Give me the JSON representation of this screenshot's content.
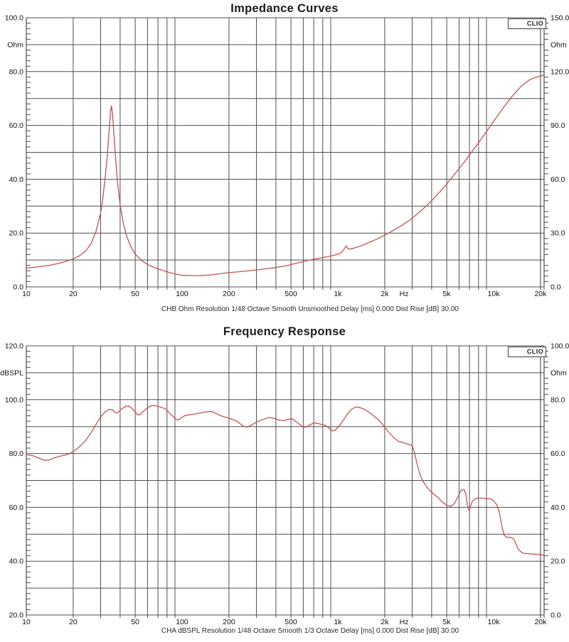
{
  "badge": "CLIO",
  "colors": {
    "grid": "#4f4f4f",
    "text": "#111111",
    "curve_red": "#bf5450",
    "background": "#ffffff"
  },
  "chart_data": [
    {
      "type": "line",
      "title": "Impedance Curves",
      "caption": "CHB Ohm Resolution 1/48 Octave Smooth Unsmoothed Delay [ms] 0.000 Dist Rise [dB] 30.00",
      "x_axis": {
        "scale": "log",
        "unit": "Hz",
        "min_hz": 10,
        "max_hz": 21000,
        "grid": "log-decades"
      },
      "x_ticks": [
        {
          "f": 10,
          "t": "10"
        },
        {
          "f": 20,
          "t": "20"
        },
        {
          "f": 50,
          "t": "50"
        },
        {
          "f": 100,
          "t": "100"
        },
        {
          "f": 200,
          "t": "200"
        },
        {
          "f": 500,
          "t": "500"
        },
        {
          "f": 1000,
          "t": "1k"
        },
        {
          "f": 2000,
          "t": "2k"
        },
        {
          "f": 2660,
          "t": "Hz"
        },
        {
          "f": 5000,
          "t": "5k"
        },
        {
          "f": 10000,
          "t": "10k"
        },
        {
          "f": 20000,
          "t": "20k"
        }
      ],
      "y_left": {
        "unit": "Ohm",
        "min": 0,
        "max": 100,
        "grid_step": 10,
        "labels": [
          {
            "v": 100,
            "t": "100.0"
          },
          {
            "v": 90,
            "t": "Ohm"
          },
          {
            "v": 80,
            "t": "80.0"
          },
          {
            "v": 60,
            "t": "60.0"
          },
          {
            "v": 40,
            "t": "40.0"
          },
          {
            "v": 20,
            "t": "20.0"
          },
          {
            "v": 0,
            "t": "0.0"
          }
        ]
      },
      "y_right": {
        "unit": "Ohm",
        "min": 0,
        "max": 150,
        "labels": [
          {
            "v": 150,
            "t": "150.0"
          },
          {
            "v": 135,
            "t": "Ohm"
          },
          {
            "v": 120,
            "t": "120.0"
          },
          {
            "v": 90,
            "t": "90.0"
          },
          {
            "v": 60,
            "t": "60.0"
          },
          {
            "v": 30,
            "t": "30.0"
          },
          {
            "v": 0,
            "t": "0.0"
          }
        ]
      },
      "series": [
        {
          "name": "CHB Ohm",
          "color": "#bf5450",
          "axis": "left",
          "points": [
            [
              10,
              7.0
            ],
            [
              12,
              7.5
            ],
            [
              14,
              8.0
            ],
            [
              16,
              8.7
            ],
            [
              18,
              9.5
            ],
            [
              20,
              10.4
            ],
            [
              22,
              11.6
            ],
            [
              24,
              13.3
            ],
            [
              26,
              16.0
            ],
            [
              28,
              20.5
            ],
            [
              30,
              27.5
            ],
            [
              31,
              33.0
            ],
            [
              32,
              40.0
            ],
            [
              33,
              48.0
            ],
            [
              34,
              58.0
            ],
            [
              34.8,
              65.5
            ],
            [
              35.2,
              67.3
            ],
            [
              35.8,
              64.0
            ],
            [
              36.5,
              57.0
            ],
            [
              37.5,
              47.0
            ],
            [
              38.5,
              39.0
            ],
            [
              40,
              30.5
            ],
            [
              42,
              23.5
            ],
            [
              44,
              19.0
            ],
            [
              47,
              14.8
            ],
            [
              50,
              12.2
            ],
            [
              55,
              9.8
            ],
            [
              60,
              8.4
            ],
            [
              65,
              7.4
            ],
            [
              70,
              6.7
            ],
            [
              80,
              5.6
            ],
            [
              90,
              4.8
            ],
            [
              100,
              4.3
            ],
            [
              115,
              4.2
            ],
            [
              130,
              4.2
            ],
            [
              150,
              4.4
            ],
            [
              175,
              4.9
            ],
            [
              200,
              5.3
            ],
            [
              240,
              5.7
            ],
            [
              280,
              6.1
            ],
            [
              330,
              6.6
            ],
            [
              400,
              7.2
            ],
            [
              470,
              7.9
            ],
            [
              550,
              8.9
            ],
            [
              650,
              9.9
            ],
            [
              750,
              10.6
            ],
            [
              850,
              11.2
            ],
            [
              950,
              11.8
            ],
            [
              1030,
              12.4
            ],
            [
              1090,
              13.8
            ],
            [
              1130,
              15.2
            ],
            [
              1170,
              14.0
            ],
            [
              1250,
              14.3
            ],
            [
              1400,
              15.2
            ],
            [
              1600,
              16.6
            ],
            [
              1800,
              17.9
            ],
            [
              2000,
              19.2
            ],
            [
              2300,
              21.2
            ],
            [
              2600,
              23.0
            ],
            [
              3000,
              25.5
            ],
            [
              3500,
              28.8
            ],
            [
              4000,
              32.0
            ],
            [
              4500,
              35.2
            ],
            [
              5000,
              38.2
            ],
            [
              5600,
              41.8
            ],
            [
              6300,
              45.5
            ],
            [
              7100,
              49.5
            ],
            [
              8000,
              53.5
            ],
            [
              9000,
              57.7
            ],
            [
              10000,
              61.5
            ],
            [
              11500,
              66.5
            ],
            [
              13000,
              70.5
            ],
            [
              15000,
              74.5
            ],
            [
              17000,
              77.0
            ],
            [
              19000,
              78.0
            ],
            [
              20000,
              78.3
            ],
            [
              21000,
              78.7
            ]
          ]
        }
      ]
    },
    {
      "type": "line",
      "title": "Frequency Response",
      "caption": "CHA dBSPL Resolution 1/48 Octave Smooth 1/3 Octave Delay [ms] 0.000 Dist Rise [dB] 30.00",
      "x_axis": {
        "scale": "log",
        "unit": "Hz",
        "min_hz": 10,
        "max_hz": 21000,
        "grid": "log-decades"
      },
      "x_ticks": [
        {
          "f": 10,
          "t": "10"
        },
        {
          "f": 20,
          "t": "20"
        },
        {
          "f": 50,
          "t": "50"
        },
        {
          "f": 100,
          "t": "100"
        },
        {
          "f": 200,
          "t": "200"
        },
        {
          "f": 500,
          "t": "500"
        },
        {
          "f": 1000,
          "t": "1k"
        },
        {
          "f": 2000,
          "t": "2k"
        },
        {
          "f": 2660,
          "t": "Hz"
        },
        {
          "f": 5000,
          "t": "5k"
        },
        {
          "f": 10000,
          "t": "10k"
        },
        {
          "f": 20000,
          "t": "20k"
        }
      ],
      "y_left": {
        "unit": "dBSPL",
        "min": 20,
        "max": 120,
        "grid_step": 10,
        "labels": [
          {
            "v": 120,
            "t": "120.0"
          },
          {
            "v": 110,
            "t": "dBSPL"
          },
          {
            "v": 100,
            "t": "100.0"
          },
          {
            "v": 80,
            "t": "80.0"
          },
          {
            "v": 60,
            "t": "60.0"
          },
          {
            "v": 40,
            "t": "40.0"
          },
          {
            "v": 20,
            "t": "20.0"
          }
        ]
      },
      "y_right": {
        "unit": "Ohm",
        "min": 0,
        "max": 100,
        "labels": [
          {
            "v": 100,
            "t": "100.0"
          },
          {
            "v": 90,
            "t": "Ohm"
          },
          {
            "v": 80,
            "t": "80.0"
          },
          {
            "v": 60,
            "t": "60.0"
          },
          {
            "v": 40,
            "t": "40.0"
          },
          {
            "v": 20,
            "t": "20.0"
          },
          {
            "v": 0,
            "t": "0.0"
          }
        ]
      },
      "series": [
        {
          "name": "CHA dBSPL",
          "color": "#bf5450",
          "axis": "left",
          "points": [
            [
              10,
              79.6
            ],
            [
              11,
              79.2
            ],
            [
              12,
              78.3
            ],
            [
              13,
              77.5
            ],
            [
              14,
              77.6
            ],
            [
              15,
              78.3
            ],
            [
              16,
              78.8
            ],
            [
              17,
              79.2
            ],
            [
              18,
              79.5
            ],
            [
              19,
              80.0
            ],
            [
              20,
              80.7
            ],
            [
              22,
              82.6
            ],
            [
              24,
              84.8
            ],
            [
              26,
              87.6
            ],
            [
              28,
              90.8
            ],
            [
              30,
              93.6
            ],
            [
              32,
              95.4
            ],
            [
              34,
              96.4
            ],
            [
              36,
              96.2
            ],
            [
              37,
              95.4
            ],
            [
              38,
              95.1
            ],
            [
              39,
              95.4
            ],
            [
              41,
              96.6
            ],
            [
              43,
              97.4
            ],
            [
              45,
              97.7
            ],
            [
              47,
              97.1
            ],
            [
              50,
              95.4
            ],
            [
              52,
              94.3
            ],
            [
              54,
              94.6
            ],
            [
              57,
              95.9
            ],
            [
              60,
              97.0
            ],
            [
              63,
              97.7
            ],
            [
              66,
              97.9
            ],
            [
              70,
              97.5
            ],
            [
              74,
              97.1
            ],
            [
              78,
              96.6
            ],
            [
              82,
              95.4
            ],
            [
              86,
              94.2
            ],
            [
              90,
              93.1
            ],
            [
              94,
              92.4
            ],
            [
              98,
              93.1
            ],
            [
              105,
              94.2
            ],
            [
              115,
              94.5
            ],
            [
              125,
              94.8
            ],
            [
              140,
              95.4
            ],
            [
              155,
              95.6
            ],
            [
              168,
              94.7
            ],
            [
              180,
              93.9
            ],
            [
              200,
              93.1
            ],
            [
              215,
              92.5
            ],
            [
              230,
              91.6
            ],
            [
              245,
              90.3
            ],
            [
              260,
              89.8
            ],
            [
              280,
              90.6
            ],
            [
              300,
              91.7
            ],
            [
              330,
              92.6
            ],
            [
              360,
              93.4
            ],
            [
              390,
              93.1
            ],
            [
              420,
              92.4
            ],
            [
              450,
              92.2
            ],
            [
              480,
              92.7
            ],
            [
              510,
              92.9
            ],
            [
              540,
              91.8
            ],
            [
              570,
              90.8
            ],
            [
              600,
              89.7
            ],
            [
              630,
              89.9
            ],
            [
              660,
              90.6
            ],
            [
              700,
              91.4
            ],
            [
              740,
              91.2
            ],
            [
              790,
              90.8
            ],
            [
              840,
              90.4
            ],
            [
              880,
              89.4
            ],
            [
              920,
              88.4
            ],
            [
              960,
              88.6
            ],
            [
              1000,
              89.7
            ],
            [
              1050,
              91.2
            ],
            [
              1100,
              92.9
            ],
            [
              1160,
              94.9
            ],
            [
              1230,
              96.5
            ],
            [
              1300,
              97.3
            ],
            [
              1380,
              97.1
            ],
            [
              1460,
              96.6
            ],
            [
              1550,
              95.7
            ],
            [
              1650,
              94.6
            ],
            [
              1750,
              93.4
            ],
            [
              1850,
              92.2
            ],
            [
              2000,
              89.8
            ],
            [
              2150,
              87.5
            ],
            [
              2300,
              85.8
            ],
            [
              2450,
              84.5
            ],
            [
              2600,
              84.2
            ],
            [
              2750,
              83.7
            ],
            [
              2900,
              83.3
            ],
            [
              3000,
              82.9
            ],
            [
              3100,
              80.5
            ],
            [
              3200,
              77.0
            ],
            [
              3350,
              72.5
            ],
            [
              3500,
              69.9
            ],
            [
              3700,
              67.8
            ],
            [
              3900,
              66.2
            ],
            [
              4100,
              65.1
            ],
            [
              4400,
              63.6
            ],
            [
              4700,
              61.9
            ],
            [
              5000,
              60.8
            ],
            [
              5300,
              60.4
            ],
            [
              5600,
              61.4
            ],
            [
              5900,
              63.9
            ],
            [
              6100,
              65.8
            ],
            [
              6300,
              66.6
            ],
            [
              6500,
              66.5
            ],
            [
              6650,
              64.5
            ],
            [
              6800,
              60.5
            ],
            [
              6950,
              58.8
            ],
            [
              7100,
              60.3
            ],
            [
              7300,
              62.3
            ],
            [
              7600,
              63.2
            ],
            [
              8000,
              63.5
            ],
            [
              8500,
              63.4
            ],
            [
              9000,
              63.2
            ],
            [
              9500,
              63.3
            ],
            [
              10000,
              62.4
            ],
            [
              10500,
              60.9
            ],
            [
              10900,
              58.0
            ],
            [
              11300,
              53.0
            ],
            [
              11700,
              49.6
            ],
            [
              12200,
              48.8
            ],
            [
              12800,
              48.9
            ],
            [
              13400,
              48.4
            ],
            [
              13900,
              46.5
            ],
            [
              14400,
              44.5
            ],
            [
              15000,
              43.4
            ],
            [
              15700,
              42.9
            ],
            [
              16500,
              42.8
            ],
            [
              17500,
              42.7
            ],
            [
              18500,
              42.6
            ],
            [
              19500,
              42.5
            ],
            [
              21000,
              42.2
            ]
          ]
        }
      ]
    }
  ]
}
